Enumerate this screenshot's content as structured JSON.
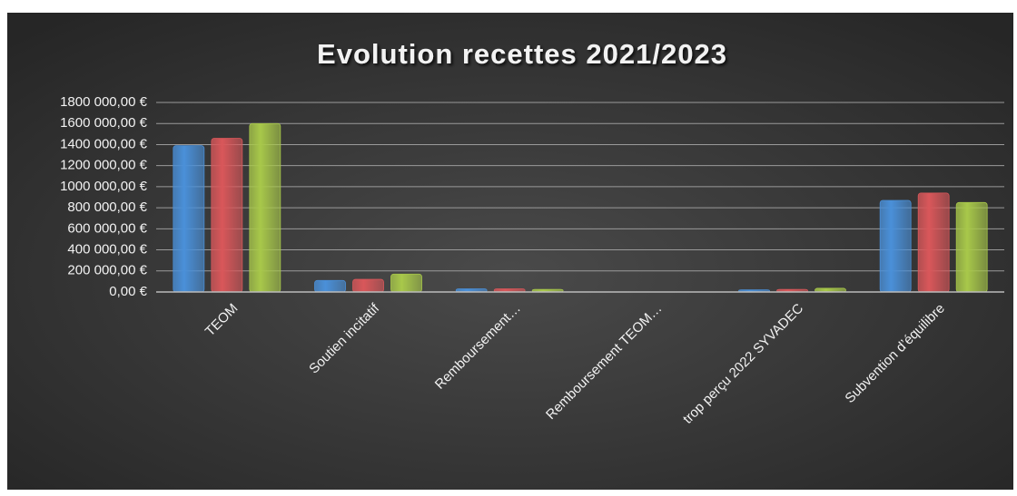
{
  "chart_data": {
    "type": "bar",
    "title": "Evolution recettes 2021/2023",
    "categories": [
      "TEOM",
      "Soutien incitatif",
      "Remboursement…",
      "Remboursement TEOM…",
      "trop perçu 2022 SYVADEC",
      "Subvention d’équilibre"
    ],
    "series": [
      {
        "color": "#4a90d9",
        "values": [
          1390000,
          110000,
          30000,
          0,
          20000,
          870000
        ]
      },
      {
        "color": "#d9575a",
        "values": [
          1460000,
          120000,
          30000,
          0,
          25000,
          940000
        ]
      },
      {
        "color": "#a8c84a",
        "values": [
          1600000,
          170000,
          25000,
          0,
          35000,
          850000
        ]
      }
    ],
    "ylim": [
      0,
      1800000
    ],
    "yticks": [
      {
        "value": 0,
        "label": "0,00 €"
      },
      {
        "value": 200000,
        "label": "200 000,00 €"
      },
      {
        "value": 400000,
        "label": "400 000,00 €"
      },
      {
        "value": 600000,
        "label": "600 000,00 €"
      },
      {
        "value": 800000,
        "label": "800 000,00 €"
      },
      {
        "value": 1000000,
        "label": "1000 000,00 €"
      },
      {
        "value": 1200000,
        "label": "1200 000,00 €"
      },
      {
        "value": 1400000,
        "label": "1400 000,00 €"
      },
      {
        "value": 1600000,
        "label": "1600 000,00 €"
      },
      {
        "value": 1800000,
        "label": "1800 000,00 €"
      }
    ],
    "grid": true
  }
}
